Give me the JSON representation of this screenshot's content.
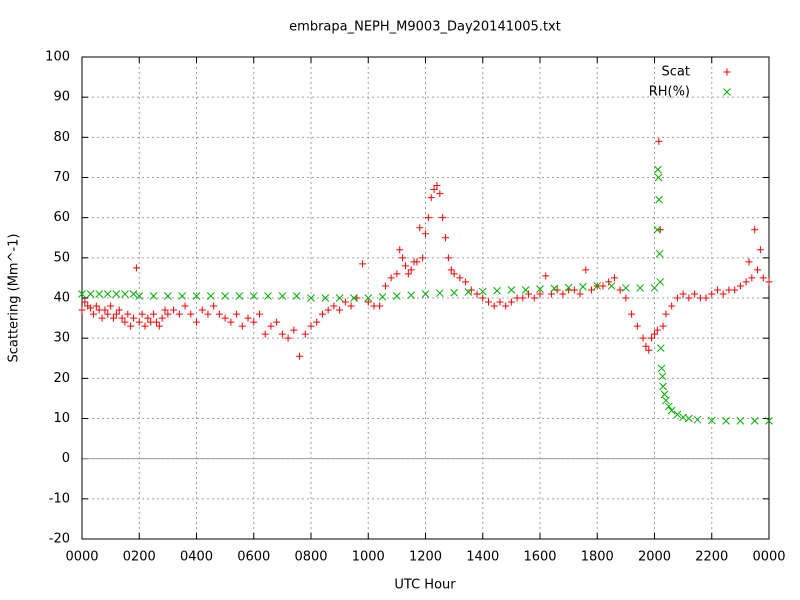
{
  "chart_data": {
    "type": "scatter",
    "title": "embrapa_NEPH_M9003_Day20141005.txt",
    "x_label": "UTC Hour",
    "y_label": "Scattering (Mm^-1)",
    "xlim": [
      0,
      24
    ],
    "xticks": [
      {
        "value": 0,
        "label": "0000"
      },
      {
        "value": 2,
        "label": "0200"
      },
      {
        "value": 4,
        "label": "0400"
      },
      {
        "value": 6,
        "label": "0600"
      },
      {
        "value": 8,
        "label": "0800"
      },
      {
        "value": 10,
        "label": "1000"
      },
      {
        "value": 12,
        "label": "1200"
      },
      {
        "value": 14,
        "label": "1400"
      },
      {
        "value": 16,
        "label": "1600"
      },
      {
        "value": 18,
        "label": "1800"
      },
      {
        "value": 20,
        "label": "2000"
      },
      {
        "value": 22,
        "label": "2200"
      },
      {
        "value": 24,
        "label": "0000"
      }
    ],
    "ylim": [
      -20,
      100
    ],
    "yticks": [
      -20,
      -10,
      0,
      10,
      20,
      30,
      40,
      50,
      60,
      70,
      80,
      90,
      100
    ],
    "grid": true,
    "legend": "top-right",
    "series": [
      {
        "name": "Scat",
        "color": "#ff0000",
        "marker": "plus",
        "x": [
          0,
          0.1,
          0.2,
          0.3,
          0.4,
          0.5,
          0.6,
          0.7,
          0.8,
          0.9,
          1.0,
          1.1,
          1.2,
          1.3,
          1.4,
          1.5,
          1.6,
          1.7,
          1.8,
          1.9,
          2.0,
          2.1,
          2.2,
          2.3,
          2.4,
          2.5,
          2.6,
          2.7,
          2.8,
          2.9,
          3.0,
          3.2,
          3.4,
          3.6,
          3.8,
          4.0,
          4.2,
          4.4,
          4.6,
          4.8,
          5.0,
          5.2,
          5.4,
          5.6,
          5.8,
          6.0,
          6.2,
          6.4,
          6.6,
          6.8,
          7.0,
          7.2,
          7.4,
          7.6,
          7.8,
          8.0,
          8.2,
          8.4,
          8.6,
          8.8,
          9.0,
          9.2,
          9.4,
          9.6,
          9.8,
          10.0,
          10.2,
          10.4,
          10.6,
          10.8,
          11.0,
          11.1,
          11.2,
          11.3,
          11.4,
          11.5,
          11.6,
          11.7,
          11.8,
          11.9,
          12.0,
          12.1,
          12.2,
          12.3,
          12.4,
          12.5,
          12.6,
          12.7,
          12.8,
          12.9,
          13.0,
          13.2,
          13.4,
          13.6,
          13.8,
          14.0,
          14.2,
          14.4,
          14.6,
          14.8,
          15.0,
          15.2,
          15.4,
          15.6,
          15.8,
          16.0,
          16.2,
          16.4,
          16.6,
          16.8,
          17.0,
          17.2,
          17.4,
          17.6,
          17.8,
          18.0,
          18.2,
          18.4,
          18.6,
          18.8,
          19.0,
          19.2,
          19.4,
          19.6,
          19.7,
          19.8,
          19.9,
          20.0,
          20.1,
          20.15,
          20.2,
          20.3,
          20.4,
          20.6,
          20.8,
          21.0,
          21.2,
          21.4,
          21.6,
          21.8,
          22.0,
          22.2,
          22.4,
          22.6,
          22.8,
          23.0,
          23.2,
          23.3,
          23.4,
          23.5,
          23.6,
          23.7,
          23.8,
          24.0
        ],
        "values": [
          37,
          39,
          38,
          37.5,
          36,
          38,
          37,
          35,
          37,
          36,
          38,
          35,
          36,
          37,
          35,
          34,
          36,
          33,
          35,
          47.5,
          34,
          36,
          33,
          35,
          34,
          36,
          34,
          33,
          35,
          37,
          36,
          37,
          36,
          38,
          36,
          34,
          37,
          36,
          38,
          36,
          35,
          34,
          36,
          33,
          35,
          34,
          36,
          31,
          33,
          34,
          31,
          30,
          32,
          25.5,
          31,
          33,
          34,
          36,
          37,
          38,
          37,
          39,
          38,
          40,
          48.5,
          39,
          38,
          38,
          43,
          45,
          46,
          52,
          50,
          48,
          46,
          47,
          49,
          49,
          57.5,
          50,
          56,
          60,
          65,
          67,
          68,
          66,
          60,
          55,
          50,
          47,
          46,
          45,
          44,
          42,
          41,
          40,
          39,
          38,
          39,
          38,
          39,
          40,
          40,
          41,
          40,
          41,
          45.5,
          41,
          42,
          41,
          42,
          42,
          41,
          47,
          42,
          43,
          43,
          44,
          45,
          42,
          40,
          36,
          33,
          30,
          28,
          27,
          30,
          31,
          32,
          79,
          57,
          33,
          36,
          38,
          40,
          41,
          40,
          41,
          40,
          40,
          41,
          42,
          41,
          42,
          42,
          43,
          44,
          49,
          45,
          57,
          47,
          52,
          45,
          44
        ]
      },
      {
        "name": "RH(%)",
        "color": "#00b000",
        "marker": "cross",
        "x": [
          0,
          0.3,
          0.6,
          0.9,
          1.2,
          1.5,
          1.8,
          2,
          2.5,
          3,
          3.5,
          4,
          4.5,
          5,
          5.5,
          6,
          6.5,
          7,
          7.5,
          8,
          8.5,
          9,
          9.5,
          10,
          10.5,
          11,
          11.5,
          12,
          12.5,
          13,
          13.5,
          14,
          14.5,
          15,
          15.5,
          16,
          16.5,
          17,
          17.5,
          18,
          18.5,
          19,
          19.5,
          20,
          20.1,
          20.12,
          20.14,
          20.16,
          20.18,
          20.2,
          20.22,
          20.25,
          20.28,
          20.3,
          20.35,
          20.4,
          20.5,
          20.6,
          20.8,
          21,
          21.2,
          21.5,
          22,
          22.5,
          23,
          23.5,
          24
        ],
        "values": [
          41,
          41,
          41,
          41,
          41,
          41,
          41,
          40.5,
          40.5,
          40.5,
          40.5,
          40.5,
          40.5,
          40.5,
          40.5,
          40.5,
          40.5,
          40.5,
          40.5,
          40,
          40,
          40,
          40,
          40,
          40.3,
          40.5,
          40.7,
          41,
          41.2,
          41.3,
          41.5,
          41.6,
          41.8,
          42,
          42,
          42.2,
          42.4,
          42.6,
          42.8,
          43,
          43,
          42.5,
          42.5,
          42.5,
          57,
          72,
          70,
          64.5,
          51,
          44,
          27.5,
          22.5,
          20.5,
          18,
          16,
          14.5,
          13,
          12,
          11,
          10.3,
          10,
          9.7,
          9.5,
          9.4,
          9.4,
          9.4,
          9.4
        ]
      }
    ]
  }
}
